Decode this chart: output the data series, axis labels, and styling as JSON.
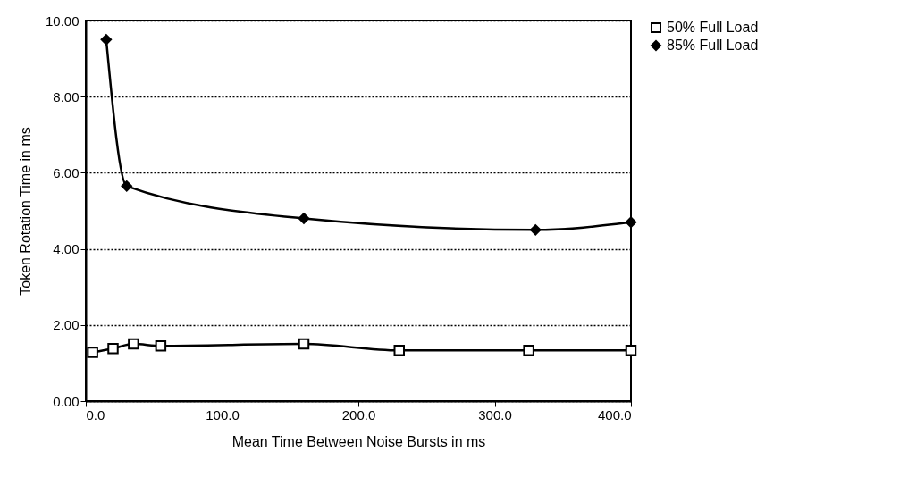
{
  "chart_data": {
    "type": "line",
    "xlabel": "Mean Time Between Noise Bursts in ms",
    "ylabel": "Token Rotation Time in ms",
    "xlim": [
      0,
      400
    ],
    "ylim": [
      0,
      10
    ],
    "xticks": [
      {
        "value": 0,
        "label": "0.0"
      },
      {
        "value": 100,
        "label": "100.0"
      },
      {
        "value": 200,
        "label": "200.0"
      },
      {
        "value": 300,
        "label": "300.0"
      },
      {
        "value": 400,
        "label": "400.0"
      }
    ],
    "yticks": [
      {
        "value": 0,
        "label": "0.00"
      },
      {
        "value": 2,
        "label": "2.00"
      },
      {
        "value": 4,
        "label": "4.00"
      },
      {
        "value": 6,
        "label": "6.00"
      },
      {
        "value": 8,
        "label": "8.00"
      },
      {
        "value": 10,
        "label": "10.00"
      }
    ],
    "grid": "y",
    "legend": "right",
    "series": [
      {
        "name": "50% Full Load",
        "color": "#000000",
        "marker": "square",
        "x": [
          5,
          20,
          35,
          55,
          160,
          230,
          325,
          400
        ],
        "values": [
          1.28,
          1.38,
          1.5,
          1.45,
          1.5,
          1.33,
          1.33,
          1.33
        ]
      },
      {
        "name": "85% Full Load",
        "color": "#000000",
        "marker": "diamond",
        "x": [
          15,
          30,
          160,
          330,
          400
        ],
        "values": [
          9.5,
          5.65,
          4.8,
          4.5,
          4.7
        ]
      }
    ]
  }
}
